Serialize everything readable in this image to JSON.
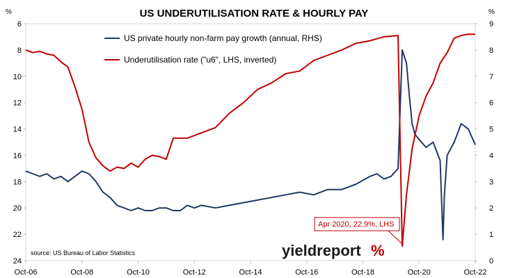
{
  "chart_data": {
    "type": "line",
    "title": "US UNDERUTILISATION RATE & HOURLY PAY",
    "left_unit": "%",
    "right_unit": "%",
    "xlabels": [
      "Oct-06",
      "Oct-08",
      "Oct-10",
      "Oct-12",
      "Oct-14",
      "Oct-16",
      "Oct-18",
      "Oct-20",
      "Oct-22"
    ],
    "xlim": [
      2006.75,
      2022.75
    ],
    "left_axis": {
      "ticks": [
        6,
        8,
        10,
        12,
        14,
        16,
        18,
        20,
        22,
        24
      ],
      "ylim": [
        6,
        24
      ],
      "inverted": true
    },
    "right_axis": {
      "ticks": [
        0,
        1,
        2,
        3,
        4,
        5,
        6,
        7,
        8,
        9
      ],
      "ylim": [
        0,
        9
      ]
    },
    "series": [
      {
        "name": "US private hourly non-farm pay growth (annual, RHS)",
        "color": "#1f3864",
        "axis": "right",
        "x": [
          2006.75,
          2007.0,
          2007.25,
          2007.5,
          2007.75,
          2008.0,
          2008.25,
          2008.5,
          2008.75,
          2009.0,
          2009.25,
          2009.5,
          2009.75,
          2010.0,
          2010.25,
          2010.5,
          2010.75,
          2011.0,
          2011.25,
          2011.5,
          2011.75,
          2012.0,
          2012.25,
          2012.5,
          2012.75,
          2013.0,
          2013.5,
          2014.0,
          2014.5,
          2015.0,
          2015.5,
          2016.0,
          2016.5,
          2017.0,
          2017.5,
          2018.0,
          2018.5,
          2019.0,
          2019.25,
          2019.5,
          2019.75,
          2020.0,
          2020.15,
          2020.3,
          2020.4,
          2020.5,
          2020.6,
          2020.75,
          2021.0,
          2021.25,
          2021.5,
          2021.6,
          2021.65,
          2021.75,
          2022.0,
          2022.25,
          2022.5,
          2022.75
        ],
        "values": [
          3.4,
          3.3,
          3.2,
          3.3,
          3.1,
          3.2,
          3.0,
          3.2,
          3.4,
          3.3,
          3.0,
          2.6,
          2.4,
          2.1,
          2.0,
          1.9,
          2.0,
          1.9,
          1.9,
          2.0,
          2.0,
          1.9,
          1.9,
          2.1,
          2.0,
          2.1,
          2.0,
          2.1,
          2.2,
          2.3,
          2.4,
          2.5,
          2.6,
          2.5,
          2.7,
          2.7,
          2.9,
          3.2,
          3.3,
          3.1,
          3.2,
          3.5,
          8.0,
          7.5,
          6.3,
          5.2,
          4.8,
          4.6,
          4.3,
          4.5,
          3.8,
          0.8,
          2.5,
          4.0,
          4.5,
          5.2,
          5.0,
          4.4
        ]
      },
      {
        "name": "Underutilisation rate (\"u6\", LHS, inverted)",
        "color": "#c00000",
        "axis": "left",
        "x": [
          2006.75,
          2007.0,
          2007.25,
          2007.5,
          2007.75,
          2008.0,
          2008.25,
          2008.5,
          2008.75,
          2009.0,
          2009.25,
          2009.5,
          2009.75,
          2010.0,
          2010.25,
          2010.5,
          2010.75,
          2011.0,
          2011.25,
          2011.5,
          2011.75,
          2012.0,
          2012.5,
          2013.0,
          2013.5,
          2014.0,
          2014.5,
          2015.0,
          2015.5,
          2016.0,
          2016.5,
          2017.0,
          2017.5,
          2018.0,
          2018.5,
          2019.0,
          2019.5,
          2020.0,
          2020.15,
          2020.3,
          2020.5,
          2020.75,
          2021.0,
          2021.25,
          2021.5,
          2021.75,
          2022.0,
          2022.25,
          2022.5,
          2022.75
        ],
        "values": [
          8.0,
          8.2,
          8.1,
          8.3,
          8.4,
          8.9,
          9.3,
          10.8,
          12.5,
          15.0,
          16.2,
          16.8,
          17.2,
          16.9,
          17.0,
          16.6,
          16.9,
          16.3,
          16.0,
          16.1,
          16.3,
          14.7,
          14.7,
          14.3,
          13.9,
          12.8,
          12.0,
          11.0,
          10.5,
          9.8,
          9.6,
          8.8,
          8.4,
          8.0,
          7.5,
          7.3,
          7.0,
          6.9,
          22.9,
          19.0,
          15.5,
          13.0,
          11.5,
          10.5,
          9.0,
          8.2,
          7.1,
          6.9,
          6.8,
          6.8
        ]
      }
    ],
    "annotation": "Apr 2020, 22.9%, LHS",
    "source": "source: US Bureau of Labor Statistics",
    "logo_text": "yieldreport",
    "logo_symbol": "%"
  }
}
